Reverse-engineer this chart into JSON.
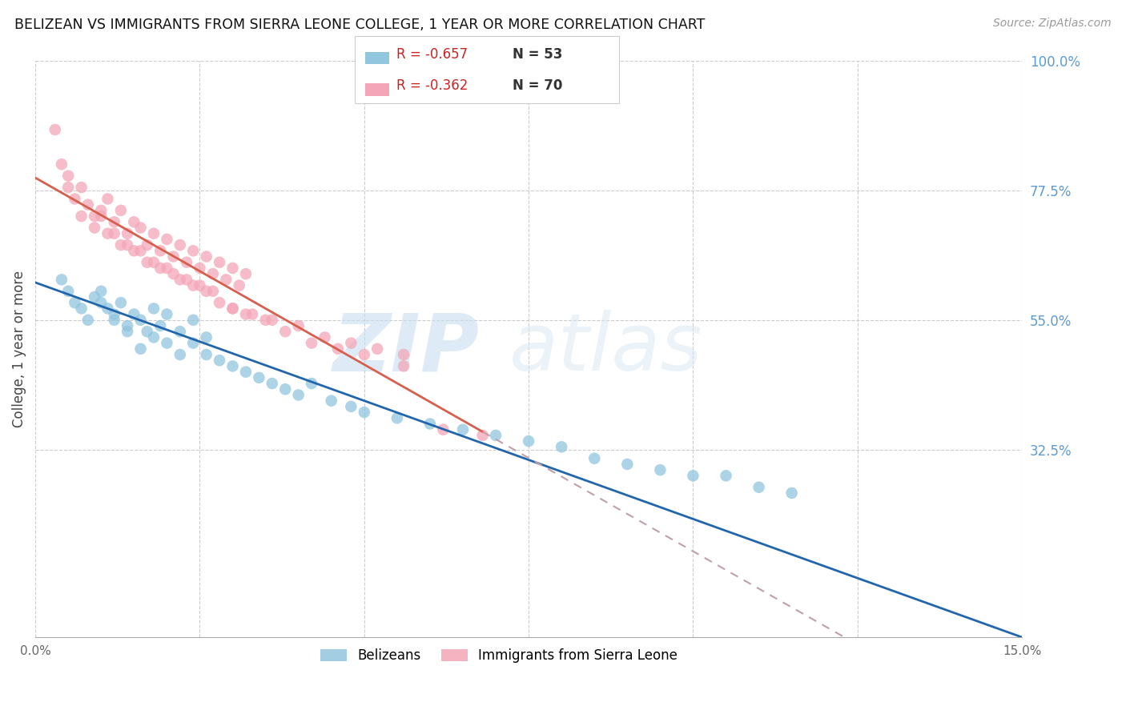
{
  "title": "BELIZEAN VS IMMIGRANTS FROM SIERRA LEONE COLLEGE, 1 YEAR OR MORE CORRELATION CHART",
  "source": "Source: ZipAtlas.com",
  "ylabel": "College, 1 year or more",
  "xlim": [
    0.0,
    0.15
  ],
  "ylim": [
    0.0,
    1.0
  ],
  "xticks": [
    0.0,
    0.025,
    0.05,
    0.075,
    0.1,
    0.125,
    0.15
  ],
  "xtick_labels": [
    "0.0%",
    "",
    "",
    "",
    "",
    "",
    "15.0%"
  ],
  "ytick_labels_right": [
    "100.0%",
    "77.5%",
    "55.0%",
    "32.5%"
  ],
  "yticks_right": [
    1.0,
    0.775,
    0.55,
    0.325
  ],
  "watermark_zip": "ZIP",
  "watermark_atlas": "atlas",
  "legend_r1": "-0.657",
  "legend_n1": "53",
  "legend_r2": "-0.362",
  "legend_n2": "70",
  "blue_color": "#92c5de",
  "pink_color": "#f4a6b8",
  "blue_line_color": "#2166ac",
  "pink_line_color": "#d6604d",
  "pink_dash_color": "#c0a0a8",
  "grid_color": "#cccccc",
  "right_axis_color": "#5b9bd5",
  "belizeans_x": [
    0.004,
    0.005,
    0.006,
    0.007,
    0.008,
    0.009,
    0.01,
    0.011,
    0.012,
    0.013,
    0.014,
    0.015,
    0.016,
    0.017,
    0.018,
    0.019,
    0.02,
    0.022,
    0.024,
    0.026,
    0.01,
    0.012,
    0.014,
    0.016,
    0.018,
    0.02,
    0.022,
    0.024,
    0.026,
    0.028,
    0.03,
    0.032,
    0.034,
    0.036,
    0.038,
    0.04,
    0.042,
    0.045,
    0.048,
    0.05,
    0.055,
    0.06,
    0.065,
    0.07,
    0.075,
    0.08,
    0.085,
    0.09,
    0.095,
    0.1,
    0.105,
    0.11,
    0.115
  ],
  "belizeans_y": [
    0.62,
    0.6,
    0.58,
    0.57,
    0.55,
    0.59,
    0.58,
    0.57,
    0.56,
    0.58,
    0.54,
    0.56,
    0.55,
    0.53,
    0.57,
    0.54,
    0.56,
    0.53,
    0.55,
    0.52,
    0.6,
    0.55,
    0.53,
    0.5,
    0.52,
    0.51,
    0.49,
    0.51,
    0.49,
    0.48,
    0.47,
    0.46,
    0.45,
    0.44,
    0.43,
    0.42,
    0.44,
    0.41,
    0.4,
    0.39,
    0.38,
    0.37,
    0.36,
    0.35,
    0.34,
    0.33,
    0.31,
    0.3,
    0.29,
    0.28,
    0.28,
    0.26,
    0.25
  ],
  "sierra_leone_x": [
    0.003,
    0.004,
    0.005,
    0.006,
    0.007,
    0.008,
    0.009,
    0.01,
    0.011,
    0.012,
    0.013,
    0.014,
    0.015,
    0.016,
    0.017,
    0.018,
    0.019,
    0.02,
    0.021,
    0.022,
    0.023,
    0.024,
    0.025,
    0.026,
    0.027,
    0.028,
    0.029,
    0.03,
    0.031,
    0.032,
    0.005,
    0.007,
    0.009,
    0.011,
    0.013,
    0.015,
    0.017,
    0.019,
    0.021,
    0.023,
    0.025,
    0.027,
    0.03,
    0.033,
    0.036,
    0.04,
    0.044,
    0.048,
    0.052,
    0.056,
    0.01,
    0.012,
    0.014,
    0.016,
    0.018,
    0.02,
    0.022,
    0.024,
    0.026,
    0.028,
    0.03,
    0.032,
    0.035,
    0.038,
    0.042,
    0.046,
    0.05,
    0.056,
    0.062,
    0.068
  ],
  "sierra_leone_y": [
    0.88,
    0.82,
    0.8,
    0.76,
    0.78,
    0.75,
    0.73,
    0.74,
    0.76,
    0.72,
    0.74,
    0.7,
    0.72,
    0.71,
    0.68,
    0.7,
    0.67,
    0.69,
    0.66,
    0.68,
    0.65,
    0.67,
    0.64,
    0.66,
    0.63,
    0.65,
    0.62,
    0.64,
    0.61,
    0.63,
    0.78,
    0.73,
    0.71,
    0.7,
    0.68,
    0.67,
    0.65,
    0.64,
    0.63,
    0.62,
    0.61,
    0.6,
    0.57,
    0.56,
    0.55,
    0.54,
    0.52,
    0.51,
    0.5,
    0.49,
    0.73,
    0.7,
    0.68,
    0.67,
    0.65,
    0.64,
    0.62,
    0.61,
    0.6,
    0.58,
    0.57,
    0.56,
    0.55,
    0.53,
    0.51,
    0.5,
    0.49,
    0.47,
    0.36,
    0.35
  ]
}
